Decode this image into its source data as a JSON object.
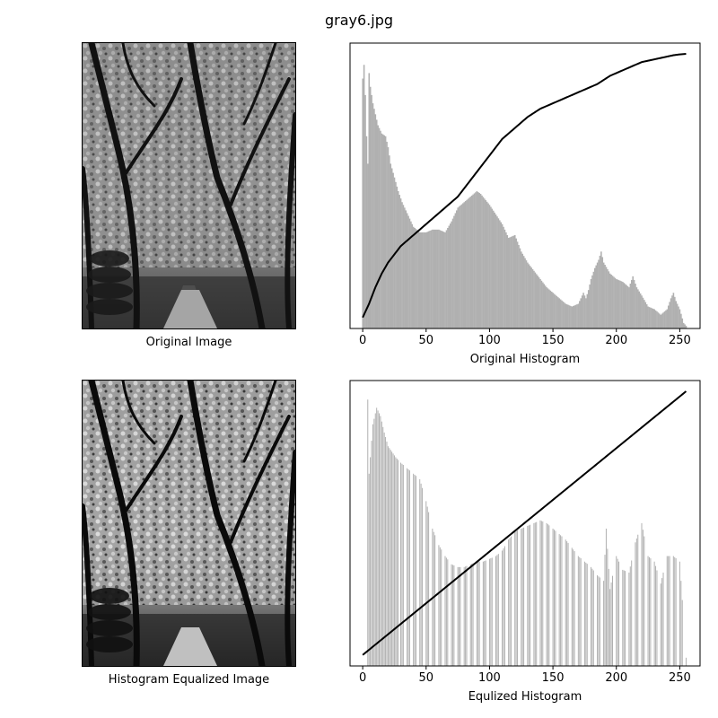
{
  "figure": {
    "title": "gray6.jpg"
  },
  "captions": {
    "original_image": "Original Image",
    "equalized_image": "Histogram Equalized Image",
    "original_hist": "Original Histogram",
    "equalized_hist": "Equlized Histogram"
  },
  "colors": {
    "bars": "#b0b0b0",
    "cdf": "#000000"
  },
  "chart_data": [
    {
      "type": "bar",
      "name": "original",
      "xlabel": "Original Histogram",
      "ylabel": "",
      "xlim": [
        -10,
        266
      ],
      "ylim": [
        0,
        1
      ],
      "xticks": [
        0,
        50,
        100,
        150,
        200,
        250
      ],
      "yticks": [],
      "grid": false,
      "bar_keypoints": [
        [
          0,
          0.91
        ],
        [
          1,
          0.96
        ],
        [
          2,
          0.85
        ],
        [
          3,
          0.7
        ],
        [
          4,
          0.6
        ],
        [
          5,
          0.93
        ],
        [
          6,
          0.88
        ],
        [
          8,
          0.82
        ],
        [
          10,
          0.78
        ],
        [
          12,
          0.74
        ],
        [
          15,
          0.71
        ],
        [
          18,
          0.7
        ],
        [
          20,
          0.66
        ],
        [
          22,
          0.6
        ],
        [
          25,
          0.55
        ],
        [
          28,
          0.5
        ],
        [
          31,
          0.46
        ],
        [
          34,
          0.43
        ],
        [
          37,
          0.4
        ],
        [
          40,
          0.37
        ],
        [
          45,
          0.35
        ],
        [
          50,
          0.35
        ],
        [
          55,
          0.36
        ],
        [
          60,
          0.36
        ],
        [
          65,
          0.35
        ],
        [
          70,
          0.39
        ],
        [
          75,
          0.44
        ],
        [
          80,
          0.46
        ],
        [
          85,
          0.48
        ],
        [
          90,
          0.5
        ],
        [
          93,
          0.49
        ],
        [
          100,
          0.45
        ],
        [
          110,
          0.38
        ],
        [
          115,
          0.33
        ],
        [
          120,
          0.34
        ],
        [
          125,
          0.28
        ],
        [
          130,
          0.24
        ],
        [
          135,
          0.21
        ],
        [
          140,
          0.18
        ],
        [
          145,
          0.15
        ],
        [
          150,
          0.13
        ],
        [
          155,
          0.11
        ],
        [
          160,
          0.09
        ],
        [
          165,
          0.08
        ],
        [
          170,
          0.09
        ],
        [
          174,
          0.13
        ],
        [
          176,
          0.11
        ],
        [
          178,
          0.14
        ],
        [
          180,
          0.18
        ],
        [
          183,
          0.22
        ],
        [
          186,
          0.25
        ],
        [
          188,
          0.28
        ],
        [
          190,
          0.24
        ],
        [
          195,
          0.2
        ],
        [
          200,
          0.18
        ],
        [
          205,
          0.17
        ],
        [
          210,
          0.15
        ],
        [
          213,
          0.19
        ],
        [
          216,
          0.15
        ],
        [
          220,
          0.12
        ],
        [
          225,
          0.08
        ],
        [
          230,
          0.07
        ],
        [
          235,
          0.05
        ],
        [
          240,
          0.07
        ],
        [
          243,
          0.11
        ],
        [
          245,
          0.13
        ],
        [
          247,
          0.1
        ],
        [
          250,
          0.07
        ],
        [
          253,
          0.02
        ],
        [
          255,
          0.01
        ]
      ],
      "cdf_keypoints": [
        [
          0,
          0.04
        ],
        [
          5,
          0.09
        ],
        [
          10,
          0.15
        ],
        [
          15,
          0.2
        ],
        [
          20,
          0.24
        ],
        [
          25,
          0.27
        ],
        [
          30,
          0.3
        ],
        [
          35,
          0.32
        ],
        [
          40,
          0.34
        ],
        [
          45,
          0.36
        ],
        [
          50,
          0.38
        ],
        [
          55,
          0.4
        ],
        [
          60,
          0.42
        ],
        [
          65,
          0.44
        ],
        [
          70,
          0.46
        ],
        [
          75,
          0.48
        ],
        [
          80,
          0.51
        ],
        [
          85,
          0.54
        ],
        [
          90,
          0.57
        ],
        [
          95,
          0.6
        ],
        [
          100,
          0.63
        ],
        [
          105,
          0.66
        ],
        [
          110,
          0.69
        ],
        [
          115,
          0.71
        ],
        [
          120,
          0.73
        ],
        [
          125,
          0.75
        ],
        [
          130,
          0.77
        ],
        [
          135,
          0.785
        ],
        [
          140,
          0.8
        ],
        [
          145,
          0.81
        ],
        [
          150,
          0.82
        ],
        [
          155,
          0.83
        ],
        [
          160,
          0.84
        ],
        [
          165,
          0.85
        ],
        [
          170,
          0.86
        ],
        [
          175,
          0.87
        ],
        [
          180,
          0.88
        ],
        [
          185,
          0.89
        ],
        [
          190,
          0.905
        ],
        [
          195,
          0.92
        ],
        [
          200,
          0.93
        ],
        [
          205,
          0.94
        ],
        [
          210,
          0.95
        ],
        [
          215,
          0.96
        ],
        [
          220,
          0.97
        ],
        [
          225,
          0.975
        ],
        [
          230,
          0.98
        ],
        [
          235,
          0.985
        ],
        [
          240,
          0.99
        ],
        [
          245,
          0.995
        ],
        [
          250,
          0.998
        ],
        [
          255,
          1.0
        ]
      ]
    },
    {
      "type": "bar",
      "name": "equalized",
      "xlabel": "Equlized Histogram",
      "ylabel": "",
      "xlim": [
        -10,
        266
      ],
      "ylim": [
        0,
        1
      ],
      "xticks": [
        0,
        50,
        100,
        150,
        200,
        250
      ],
      "yticks": [],
      "grid": false,
      "bar_keypoints": [
        [
          4,
          0.97
        ],
        [
          5,
          0.7
        ],
        [
          8,
          0.88
        ],
        [
          11,
          0.94
        ],
        [
          14,
          0.91
        ],
        [
          17,
          0.85
        ],
        [
          20,
          0.8
        ],
        [
          23,
          0.78
        ],
        [
          26,
          0.76
        ],
        [
          30,
          0.74
        ],
        [
          35,
          0.72
        ],
        [
          40,
          0.7
        ],
        [
          45,
          0.68
        ],
        [
          50,
          0.6
        ],
        [
          55,
          0.5
        ],
        [
          60,
          0.44
        ],
        [
          65,
          0.4
        ],
        [
          70,
          0.37
        ],
        [
          75,
          0.36
        ],
        [
          80,
          0.36
        ],
        [
          85,
          0.37
        ],
        [
          90,
          0.38
        ],
        [
          95,
          0.38
        ],
        [
          100,
          0.39
        ],
        [
          105,
          0.4
        ],
        [
          110,
          0.42
        ],
        [
          115,
          0.46
        ],
        [
          120,
          0.49
        ],
        [
          125,
          0.5
        ],
        [
          130,
          0.51
        ],
        [
          135,
          0.52
        ],
        [
          140,
          0.53
        ],
        [
          145,
          0.52
        ],
        [
          150,
          0.5
        ],
        [
          155,
          0.48
        ],
        [
          160,
          0.46
        ],
        [
          165,
          0.43
        ],
        [
          170,
          0.4
        ],
        [
          175,
          0.38
        ],
        [
          180,
          0.36
        ],
        [
          185,
          0.33
        ],
        [
          190,
          0.31
        ],
        [
          192,
          0.5
        ],
        [
          195,
          0.28
        ],
        [
          200,
          0.4
        ],
        [
          205,
          0.35
        ],
        [
          210,
          0.34
        ],
        [
          215,
          0.45
        ],
        [
          220,
          0.52
        ],
        [
          225,
          0.4
        ],
        [
          230,
          0.38
        ],
        [
          235,
          0.3
        ],
        [
          240,
          0.4
        ],
        [
          245,
          0.4
        ],
        [
          250,
          0.38
        ],
        [
          255,
          0.03
        ]
      ],
      "cdf_keypoints": [
        [
          0,
          0.04
        ],
        [
          255,
          1.0
        ]
      ]
    }
  ]
}
